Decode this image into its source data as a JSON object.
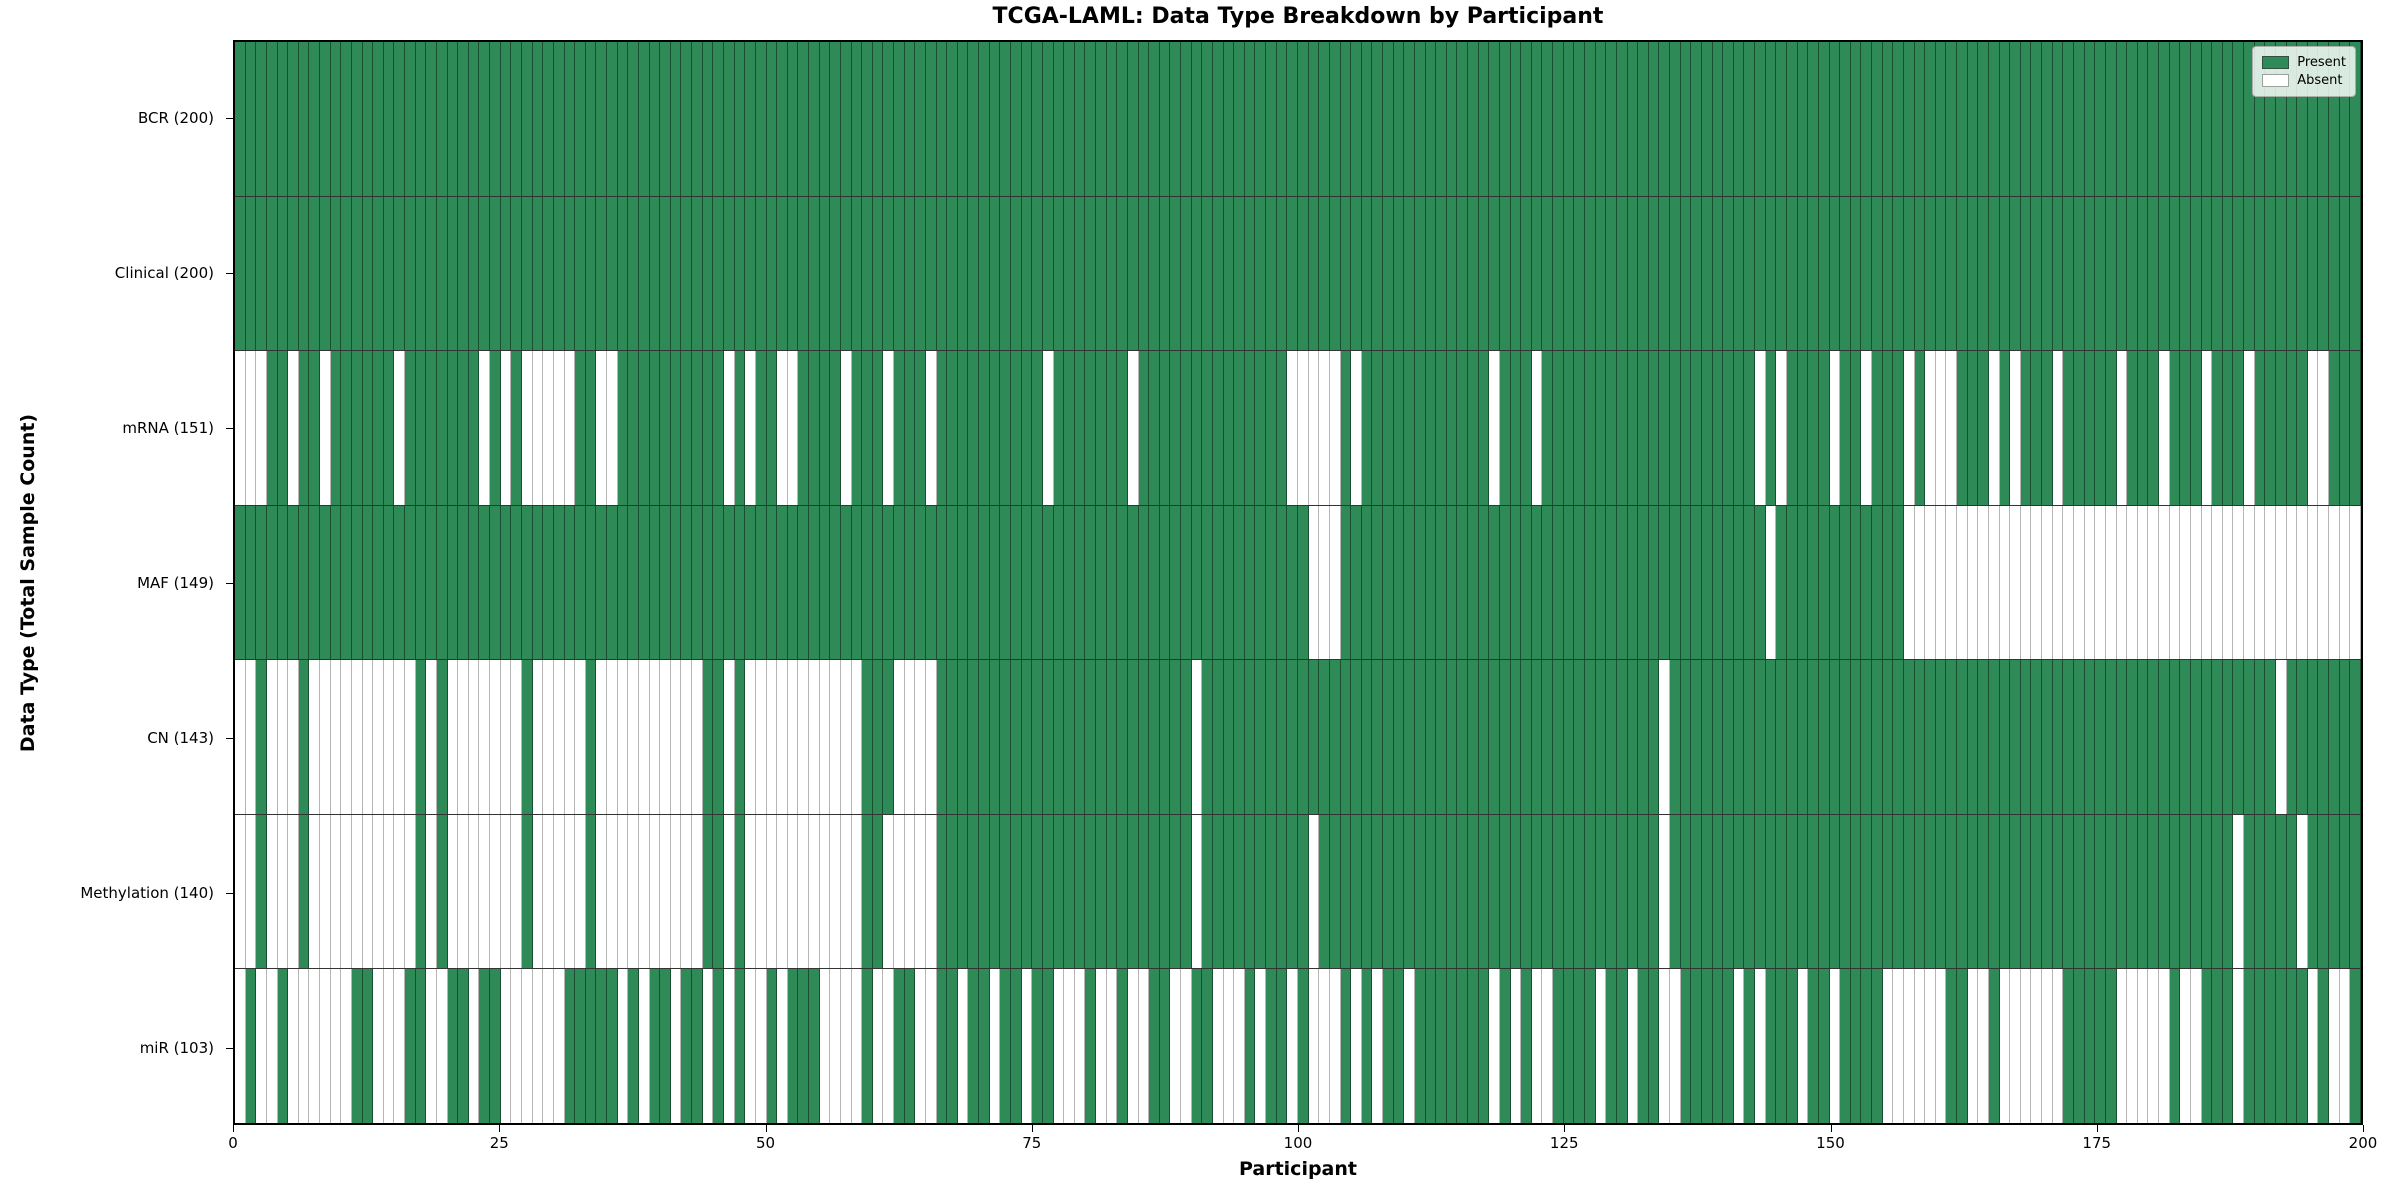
{
  "title": "TCGA-LAML: Data Type Breakdown by Participant",
  "xlabel": "Participant",
  "ylabel": "Data Type (Total Sample Count)",
  "legend": {
    "present_label": "Present",
    "absent_label": "Absent"
  },
  "colors": {
    "present": "#2e8b57",
    "absent": "#ffffff",
    "bar_edge": "#1e3a2a",
    "axis": "#000000"
  },
  "chart_data": {
    "type": "heatmap",
    "title": "TCGA-LAML: Data Type Breakdown by Participant",
    "xlabel": "Participant",
    "ylabel": "Data Type (Total Sample Count)",
    "x_range": [
      0,
      200
    ],
    "x_ticks": [
      0,
      25,
      50,
      75,
      100,
      125,
      150,
      175,
      200
    ],
    "grid": false,
    "legend_position": "upper right",
    "legend_entries": [
      "Present",
      "Absent"
    ],
    "encoding": {
      "1": "Present",
      "0": "Absent"
    },
    "rows": [
      {
        "label": "BCR (200)",
        "name": "BCR",
        "present_count": 200,
        "pattern": "11111111111111111111111111111111111111111111111111111111111111111111111111111111111111111111111111111111111111111111111111111111111111111111111111111111111111111111111111111111111111111111111111111111"
      },
      {
        "label": "Clinical (200)",
        "name": "Clinical",
        "present_count": 200,
        "pattern": "11111111111111111111111111111111111111111111111111111111111111111111111111111111111111111111111111111111111111111111111111111111111111111111111111111111111111111111111111111111111111111111111111111111"
      },
      {
        "label": "mRNA (151)",
        "name": "mRNA",
        "present_count": 151,
        "pattern": "00011011011111101111111010100000110011111111110101100111101110111011111111110111111101111111111111100000101111111111110111011111111111111111111010111101101110100011101011101111101110111011101111100111 11"
      },
      {
        "label": "MAF (149)",
        "name": "MAF",
        "present_count": 149,
        "pattern": "11111111111111111111111111111111111111111111111111111111111111111111111111111111111111111111111111111000111111111111111111111111111111111111111101111111111110000000000000000000000000000000000000000000"
      },
      {
        "label": "CN (143)",
        "name": "CN",
        "present_count": 143,
        "pattern": "00100010000000000101000000010000010000000000110100000000000111000011111111111111111111111101111111111111111111111111111111111111111111011111111111111111111111111111111111111111111111111111111101111111 11"
      },
      {
        "label": "Methylation (140)",
        "name": "Methylation",
        "present_count": 140,
        "pattern": "00100010000000000101000000010000010000000000110100000000000110000011111111111111111111111101111111111011111111111111111111111111111111011111111111111111111111111111111111111111111111111111011111011111 1111"
      },
      {
        "label": "miR (103)",
        "name": "miR",
        "present_count": 103,
        "pattern": "01001000000110001100110110000001111101011011010100101110000100110011011011011000100100110011000101101000101011011111110101001111011011001111101011101101111000000110010000001111100000100111011111101001"
      }
    ]
  }
}
